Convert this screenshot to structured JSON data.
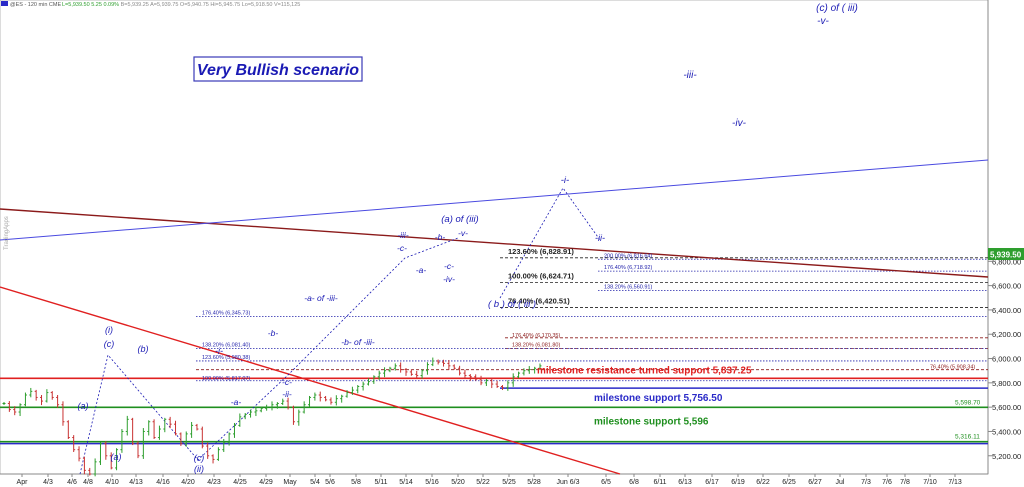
{
  "header": {
    "symbol": "@ES - 120 min  CME",
    "stats": [
      {
        "label": "L=",
        "value": "5,939.50",
        "color": "#2e9e2e"
      },
      {
        "label": "",
        "value": "5.25",
        "color": "#2e9e2e"
      },
      {
        "label": "",
        "value": "0.09%",
        "color": "#2e9e2e"
      },
      {
        "label": "B=",
        "value": "5,939.25",
        "color": "#8a8a8a"
      },
      {
        "label": "A=",
        "value": "5,939.75",
        "color": "#8a8a8a"
      },
      {
        "label": "O=",
        "value": "5,940.75",
        "color": "#8a8a8a"
      },
      {
        "label": "Hi=",
        "value": "5,945.75",
        "color": "#8a8a8a"
      },
      {
        "label": "Lo=",
        "value": "5,918.50",
        "color": "#8a8a8a"
      },
      {
        "label": "V=",
        "value": "115,125",
        "color": "#8a8a8a"
      }
    ]
  },
  "watermark": "TradingApps",
  "scenario_label": "Very Bullish scenario",
  "last_price_label": "5,939.50",
  "chart_data": {
    "type": "line",
    "title": "",
    "xlabel": "",
    "ylabel": "",
    "ylim": [
      5050,
      8950
    ],
    "y_ticks": [
      5200,
      5400,
      5600,
      5800,
      6000,
      6200,
      6400,
      6600,
      6800
    ],
    "y_tick_labels": [
      "5,200.00",
      "5,400.00",
      "5,600.00",
      "5,800.00",
      "6,000.00",
      "6,200.00",
      "6,400.00",
      "6,600.00",
      "6,800.00"
    ],
    "x_tick_labels": [
      "Apr",
      "4/3",
      "4/6",
      "4/8",
      "4/10",
      "4/13",
      "4/16",
      "4/20",
      "4/23",
      "4/25",
      "4/29",
      "May",
      "5/4",
      "5/6",
      "5/8",
      "5/11",
      "5/14",
      "5/16",
      "5/20",
      "5/22",
      "5/25",
      "5/28",
      "Jun 6/3",
      "6/5",
      "6/8",
      "6/11",
      "6/13",
      "6/17",
      "6/19",
      "6/22",
      "6/25",
      "6/27",
      "Jul",
      "7/3",
      "7/6",
      "7/8",
      "7/10",
      "7/13"
    ],
    "series": [
      {
        "values": [
          5630,
          5580,
          5560,
          5620,
          5700,
          5730,
          5680,
          5650,
          5720,
          5680,
          5620,
          5480,
          5350,
          5250,
          5180,
          5080,
          5050,
          5150,
          5300,
          5200,
          5100,
          5250,
          5400,
          5500,
          5300,
          5200,
          5400,
          5480,
          5350,
          5420,
          5500,
          5460,
          5380,
          5300,
          5380,
          5450,
          5420,
          5280,
          5200,
          5170,
          5250,
          5310,
          5380,
          5450,
          5520,
          5540,
          5560,
          5570,
          5590,
          5600,
          5620,
          5630,
          5650,
          5600,
          5480,
          5560,
          5620,
          5680,
          5700,
          5680,
          5660,
          5640,
          5670,
          5690,
          5720,
          5740,
          5770,
          5790,
          5810,
          5850,
          5880,
          5900,
          5920,
          5940,
          5910,
          5890,
          5870,
          5860,
          5900,
          5950,
          5980,
          5970,
          5960,
          5940,
          5920,
          5880,
          5860,
          5850,
          5830,
          5800,
          5820,
          5790,
          5770,
          5760,
          5800,
          5850,
          5880,
          5900,
          5910,
          5920,
          5939.5
        ]
      }
    ],
    "horizontal_lines": [
      {
        "value": 6828.91,
        "label": "123.60% (6,828.91)",
        "style": "dashed",
        "color": "#222222"
      },
      {
        "value": 6816.64,
        "label": "200.00% (6,816.64)",
        "style": "dotted",
        "color": "#2222aa"
      },
      {
        "value": 6718.92,
        "label": "176.40% (6,718.92)",
        "style": "dotted",
        "color": "#2222aa"
      },
      {
        "value": 6624.71,
        "label": "100.00% (6,624.71)",
        "style": "dashed",
        "color": "#222222"
      },
      {
        "value": 6560.91,
        "label": "138.20% (6,560.91)",
        "style": "dotted",
        "color": "#2222aa"
      },
      {
        "value": 6420.51,
        "label": "76.40% (6,420.51)",
        "style": "dashed",
        "color": "#222222"
      },
      {
        "value": 6345.73,
        "label": "176.40% (6,345.73)",
        "style": "dotted",
        "color": "#2222aa"
      },
      {
        "value": 6170.35,
        "label": "176.40% (6,170.35)",
        "style": "dashed",
        "color": "#8b1a1a"
      },
      {
        "value": 6081.8,
        "label": "138.20% (6,081.80)",
        "style": "dashed",
        "color": "#8b1a1a"
      },
      {
        "value": 6081.4,
        "label": "138.20% (6,081.40)",
        "style": "dotted",
        "color": "#2222aa"
      },
      {
        "value": 5980.38,
        "label": "123.60% (5,980.38)",
        "style": "dotted",
        "color": "#2222aa"
      },
      {
        "value": 5908.34,
        "label": "76.40% (5,908.34)",
        "style": "dashed",
        "color": "#8b1a1a"
      },
      {
        "value": 5837.25,
        "label": "milestone resistance turned support 5,837.25",
        "style": "solid",
        "color": "#e02020"
      },
      {
        "value": 5817.07,
        "label": "100.00% (5,817.07)",
        "style": "dotted",
        "color": "#2222aa"
      },
      {
        "value": 5756.5,
        "label": "milestone support 5,756.50",
        "style": "solid",
        "color": "#2a2ac8"
      },
      {
        "value": 5598.7,
        "label": "5,598.70",
        "style": "solid",
        "color": "#1f8f1f"
      },
      {
        "value": 5596,
        "label": "milestone support 5,596",
        "style": "solid",
        "color": "#1f8f1f"
      },
      {
        "value": 5316.11,
        "label": "5,316.11",
        "style": "solid",
        "color": "#1f8f1f"
      },
      {
        "value": 5300,
        "label": "",
        "style": "solid",
        "color": "#2a2ac8"
      }
    ],
    "wave_labels": [
      "(i)",
      "(c)",
      "(b)",
      "(a)",
      "(a)",
      "(c)",
      "(ii)",
      "-i-",
      "-a-",
      "-b-",
      "-c-",
      "-ii-",
      "-a- of -iii-",
      "-b- of -iii-",
      "-iii-",
      "-c-",
      "-a-",
      "-b-",
      "(a) of (iii)",
      "-v-",
      "-c-",
      "-iv-",
      "( b ) of ( iii )",
      "-i-",
      "-ii-",
      "-iii-",
      "-iv-",
      "-v-",
      "(c) of ( iii)"
    ],
    "colors": {
      "price_up": "#2e9e2e",
      "price_down": "#c83232",
      "wave_label": "#1a1ab4",
      "trend_red": "#e02020",
      "trend_maroon": "#8b1a1a",
      "trend_blue": "#4a4ae0",
      "last_price_bg": "#2e9e2e"
    }
  }
}
